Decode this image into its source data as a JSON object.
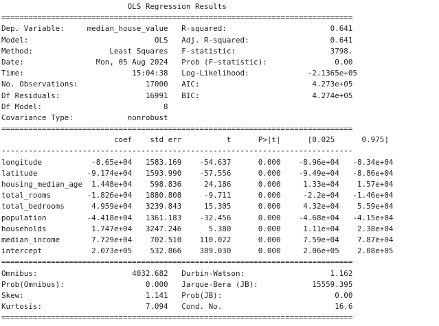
{
  "title": "OLS Regression Results",
  "lines": [
    "                            OLS Regression Results                            ",
    "==============================================================================",
    "Dep. Variable:     median_house_value   R-squared:                       0.641",
    "Model:                            OLS   Adj. R-squared:                  0.641",
    "Method:                 Least Squares   F-statistic:                     3798.",
    "Date:                Mon, 05 Aug 2024   Prob (F-statistic):               0.00",
    "Time:                        15:04:38   Log-Likelihood:             -2.1365e+05",
    "No. Observations:               17000   AIC:                         4.273e+05",
    "Df Residuals:                   16991   BIC:                         4.274e+05",
    "Df Model:                           8                                         ",
    "Covariance Type:            nonrobust                                         ",
    "==============================================================================",
    "                         coef    std err          t      P>|t|      [0.025      0.975]",
    "------------------------------------------------------------------------------",
    "longitude           -8.65e+04   1583.169    -54.637      0.000    -8.96e+04   -8.34e+04",
    "latitude           -9.174e+04   1593.990    -57.556      0.000    -9.49e+04   -8.86e+04",
    "housing_median_age  1.448e+04    598.836     24.186      0.000     1.33e+04    1.57e+04",
    "total_rooms        -1.826e+04   1880.808     -9.711      0.000     -2.2e+04   -1.46e+04",
    "total_bedrooms      4.959e+04   3239.843     15.305      0.000     4.32e+04    5.59e+04",
    "population         -4.418e+04   1361.183    -32.456      0.000    -4.68e+04   -4.15e+04",
    "households          1.747e+04   3247.246      5.380      0.000     1.11e+04    2.38e+04",
    "median_income       7.729e+04    702.510    110.022      0.000     7.59e+04    7.87e+04",
    "intercept           2.073e+05    532.866    389.030      0.000     2.06e+05    2.08e+05",
    "==============================================================================",
    "Omnibus:                     4032.682   Durbin-Watson:                   1.162",
    "Prob(Omnibus):                  0.000   Jarque-Bera (JB):            15559.395",
    "Skew:                           1.141   Prob(JB):                         0.00",
    "Kurtosis:                       7.094   Cond. No.                         16.6",
    "=============================================================================="
  ]
}
